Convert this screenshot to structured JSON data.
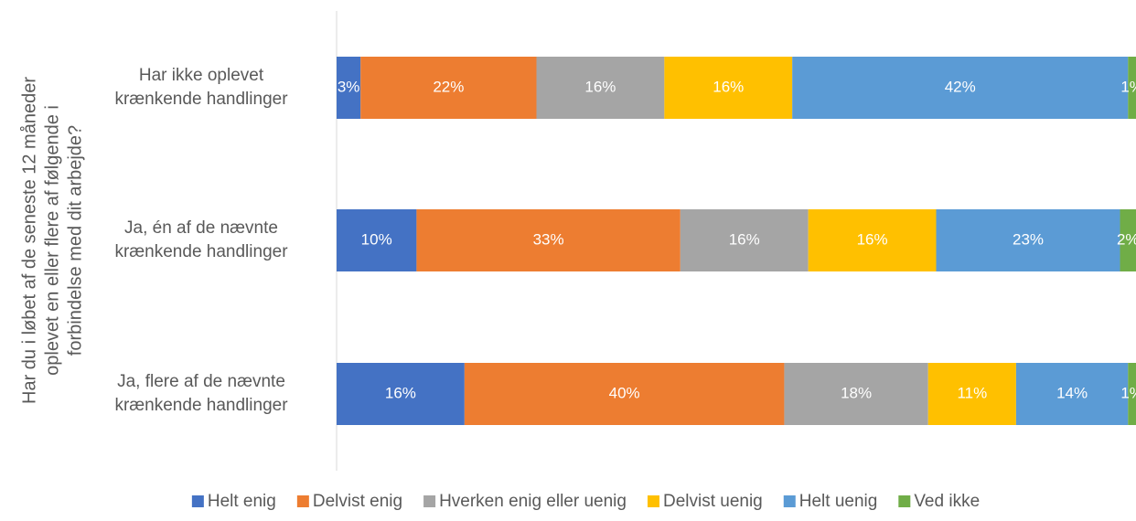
{
  "chart_data": {
    "type": "bar",
    "orientation": "horizontal",
    "stacked": true,
    "y_axis_label": "Har du i løbet af de seneste 12 måneder\noplevet en eller flere af følgende i\nforbindelse med dit arbejde?",
    "categories": [
      "Har ikke oplevet\nkrænkende handlinger",
      "Ja, én af de nævnte\nkrænkende handlinger",
      "Ja, flere af de nævnte\nkrænkende handlinger"
    ],
    "xlim": [
      0,
      100
    ],
    "legend": "bottom",
    "series": [
      {
        "name": "Helt enig",
        "color": "#4472c4",
        "values": [
          3,
          10,
          16
        ],
        "value_labels": [
          "3%",
          "10%",
          "16%"
        ]
      },
      {
        "name": "Delvist enig",
        "color": "#ed7d31",
        "values": [
          22,
          33,
          40
        ],
        "value_labels": [
          "22%",
          "33%",
          "40%"
        ]
      },
      {
        "name": "Hverken enig eller uenig",
        "color": "#a5a5a5",
        "values": [
          16,
          16,
          18
        ],
        "value_labels": [
          "16%",
          "16%",
          "18%"
        ]
      },
      {
        "name": "Delvist uenig",
        "color": "#ffc000",
        "values": [
          16,
          16,
          11
        ],
        "value_labels": [
          "16%",
          "16%",
          "11%"
        ]
      },
      {
        "name": "Helt uenig",
        "color": "#5b9bd5",
        "values": [
          42,
          23,
          14
        ],
        "value_labels": [
          "42%",
          "23%",
          "14%"
        ]
      },
      {
        "name": "Ved ikke",
        "color": "#70ad47",
        "values": [
          1,
          2,
          1
        ],
        "value_labels": [
          "1%",
          "2%",
          "1%"
        ]
      }
    ]
  }
}
